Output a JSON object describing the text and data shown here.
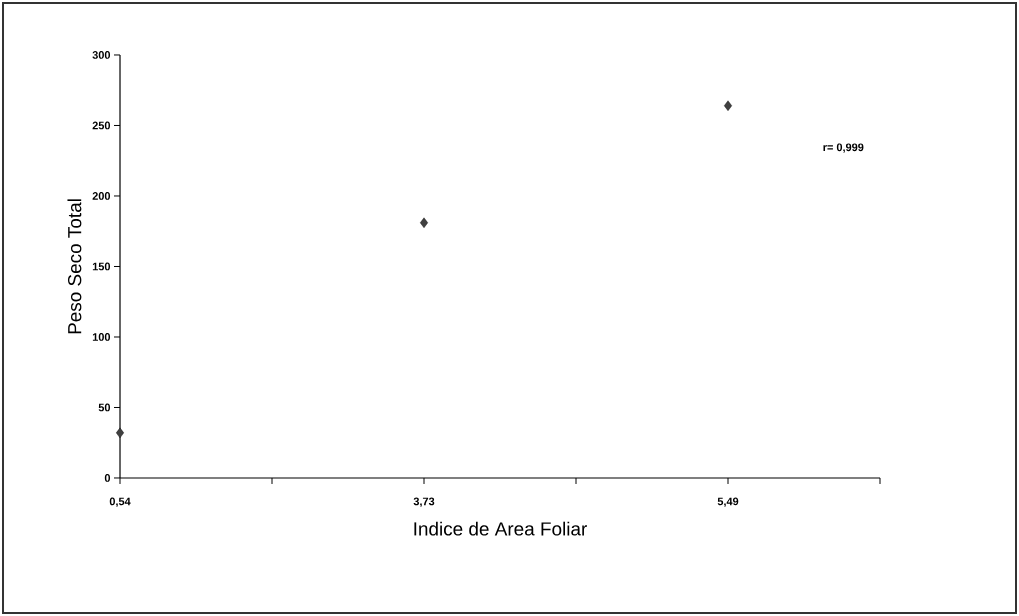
{
  "chart_data": {
    "type": "scatter",
    "xlabel": "Indice de Area Foliar",
    "ylabel": "Peso Seco Total",
    "categories": [
      "0,54",
      "3,73",
      "5,49"
    ],
    "values": [
      32,
      181,
      264
    ],
    "color": "#404040",
    "marker": "diamond",
    "ylim": [
      0,
      300
    ],
    "yticks": [
      0,
      50,
      100,
      150,
      200,
      250,
      300
    ],
    "grid": false,
    "annotations": [
      "r= 0,999"
    ]
  }
}
